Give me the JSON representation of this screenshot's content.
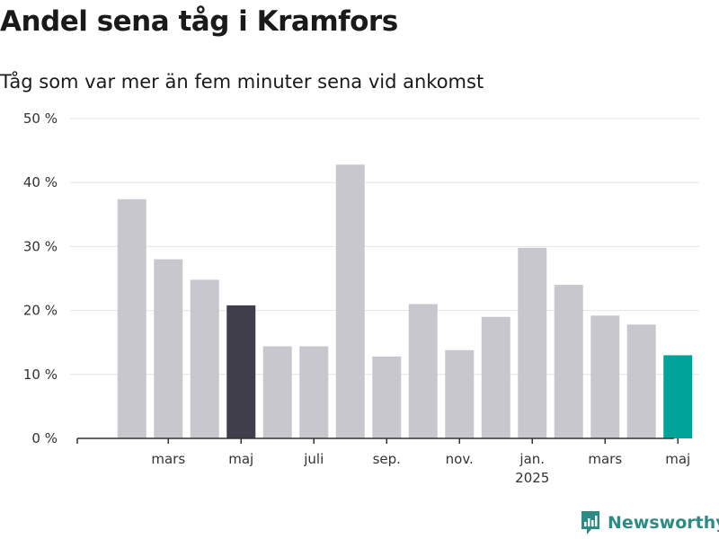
{
  "title": "Andel sena tåg i Kramfors",
  "subtitle": "Tåg som var mer än fem minuter sena vid ankomst",
  "brand": {
    "name": "Newsworthy",
    "icon": "newsworthy-logo-icon"
  },
  "colors": {
    "default_bar": "#c8c7cd",
    "highlight_bar": "#3f3e4a",
    "latest_bar": "#00a39a"
  },
  "chart_data": {
    "type": "bar",
    "categories": [
      "2024-01",
      "2024-02",
      "2024-03",
      "2024-04",
      "2024-05",
      "2024-06",
      "2024-07",
      "2024-08",
      "2024-09",
      "2024-10",
      "2024-11",
      "2024-12",
      "2025-01",
      "2025-02",
      "2025-03",
      "2025-04",
      "2025-05"
    ],
    "values": [
      null,
      37.4,
      28.0,
      24.8,
      20.8,
      14.4,
      14.4,
      42.8,
      12.8,
      21.0,
      13.8,
      19.0,
      29.8,
      24.0,
      19.2,
      17.8,
      13.0
    ],
    "highlight": {
      "2024-05": "highlight_bar",
      "2025-05": "latest_bar"
    },
    "ylim": [
      0,
      50
    ],
    "yticks": [
      "0 %",
      "10 %",
      "20 %",
      "30 %",
      "40 %",
      "50 %"
    ],
    "xticks": [
      {
        "category": "2024-03",
        "label": "mars"
      },
      {
        "category": "2024-05",
        "label": "maj"
      },
      {
        "category": "2024-07",
        "label": "juli"
      },
      {
        "category": "2024-09",
        "label": "sep."
      },
      {
        "category": "2024-11",
        "label": "nov."
      },
      {
        "category": "2025-01",
        "label": "jan.",
        "sublabel": "2025"
      },
      {
        "category": "2025-03",
        "label": "mars"
      },
      {
        "category": "2025-05",
        "label": "maj"
      }
    ],
    "grid": true
  }
}
